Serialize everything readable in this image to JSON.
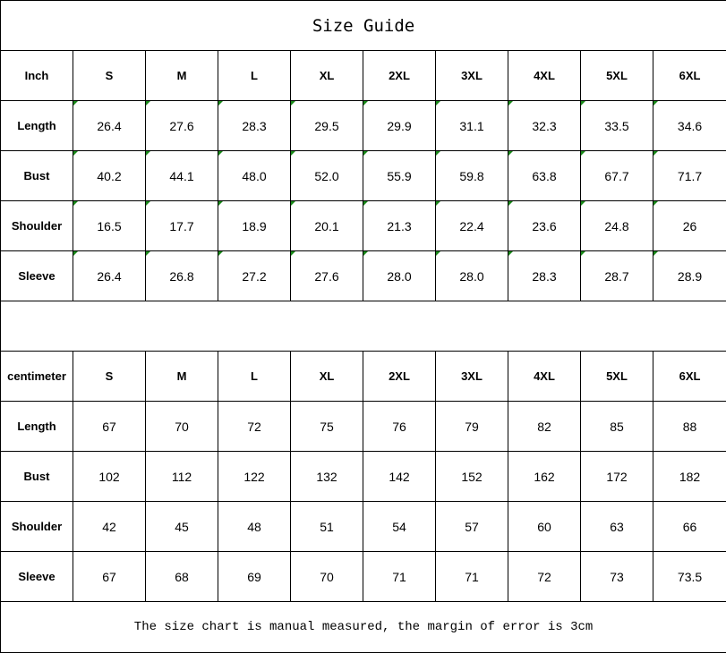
{
  "title": "Size Guide",
  "sizes": [
    "S",
    "M",
    "L",
    "XL",
    "2XL",
    "3XL",
    "4XL",
    "5XL",
    "6XL"
  ],
  "error_indicator_color": "#1a8a1a",
  "inch": {
    "unit_label": "Inch",
    "rows": [
      {
        "label": "Length",
        "values": [
          "26.4",
          "27.6",
          "28.3",
          "29.5",
          "29.9",
          "31.1",
          "32.3",
          "33.5",
          "34.6"
        ]
      },
      {
        "label": "Bust",
        "values": [
          "40.2",
          "44.1",
          "48.0",
          "52.0",
          "55.9",
          "59.8",
          "63.8",
          "67.7",
          "71.7"
        ]
      },
      {
        "label": "Shoulder",
        "values": [
          "16.5",
          "17.7",
          "18.9",
          "20.1",
          "21.3",
          "22.4",
          "23.6",
          "24.8",
          "26"
        ]
      },
      {
        "label": "Sleeve",
        "values": [
          "26.4",
          "26.8",
          "27.2",
          "27.6",
          "28.0",
          "28.0",
          "28.3",
          "28.7",
          "28.9"
        ]
      }
    ]
  },
  "centimeter": {
    "unit_label": "centimeter",
    "rows": [
      {
        "label": "Length",
        "values": [
          "67",
          "70",
          "72",
          "75",
          "76",
          "79",
          "82",
          "85",
          "88"
        ]
      },
      {
        "label": "Bust",
        "values": [
          "102",
          "112",
          "122",
          "132",
          "142",
          "152",
          "162",
          "172",
          "182"
        ]
      },
      {
        "label": "Shoulder",
        "values": [
          "42",
          "45",
          "48",
          "51",
          "54",
          "57",
          "60",
          "63",
          "66"
        ]
      },
      {
        "label": "Sleeve",
        "values": [
          "67",
          "68",
          "69",
          "70",
          "71",
          "71",
          "72",
          "73",
          "73.5"
        ]
      }
    ]
  },
  "note": "The size chart is manual measured, the margin of error is 3cm"
}
